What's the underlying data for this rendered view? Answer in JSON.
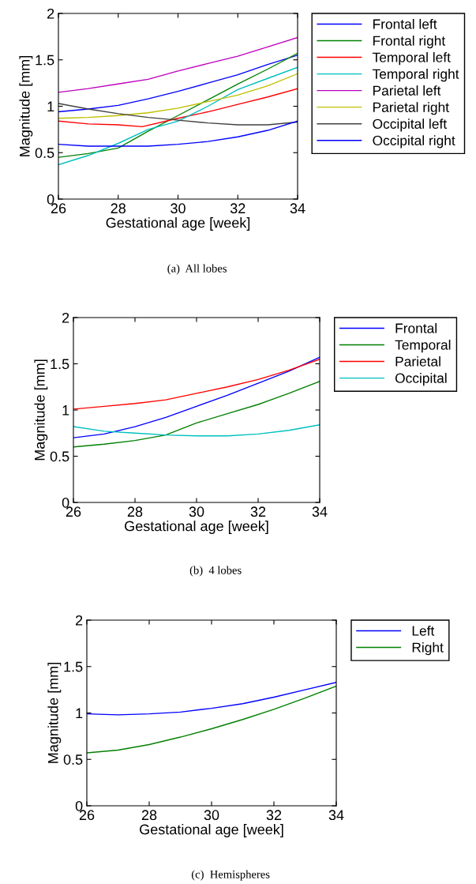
{
  "chart_data": [
    {
      "type": "line",
      "xlabel": "Gestational age [week]",
      "ylabel": "Magnitude [mm]",
      "annotations": [
        "(a)  All lobes"
      ],
      "x": [
        26,
        27,
        28,
        29,
        30,
        31,
        32,
        33,
        34
      ],
      "xlim": [
        26,
        34
      ],
      "xticks": [
        26,
        28,
        30,
        32,
        34
      ],
      "ylim": [
        0,
        2
      ],
      "yticks": [
        0,
        0.5,
        1,
        1.5,
        2
      ],
      "grid": false,
      "legend": "right",
      "series": [
        {
          "name": "Frontal left",
          "color": "#0000ff",
          "values": [
            0.94,
            0.97,
            1.01,
            1.08,
            1.16,
            1.25,
            1.34,
            1.45,
            1.55
          ]
        },
        {
          "name": "Frontal right",
          "color": "#008000",
          "values": [
            0.45,
            0.49,
            0.55,
            0.73,
            0.9,
            1.07,
            1.24,
            1.4,
            1.57
          ]
        },
        {
          "name": "Temporal left",
          "color": "#ff0000",
          "x": [
            26,
            27,
            28,
            28.8,
            30,
            31,
            32,
            33,
            34
          ],
          "values": [
            0.84,
            0.81,
            0.8,
            0.78,
            0.87,
            0.94,
            1.02,
            1.1,
            1.19
          ]
        },
        {
          "name": "Temporal right",
          "color": "#00bfbf",
          "values": [
            0.37,
            0.47,
            0.6,
            0.75,
            0.84,
            1.0,
            1.18,
            1.3,
            1.42
          ]
        },
        {
          "name": "Parietal left",
          "color": "#bf00bf",
          "values": [
            1.15,
            1.19,
            1.24,
            1.29,
            1.38,
            1.46,
            1.54,
            1.64,
            1.74
          ]
        },
        {
          "name": "Parietal right",
          "color": "#bfbf00",
          "values": [
            0.87,
            0.88,
            0.9,
            0.93,
            0.98,
            1.05,
            1.12,
            1.22,
            1.35
          ]
        },
        {
          "name": "Occipital left",
          "color": "#404040",
          "values": [
            1.03,
            0.97,
            0.92,
            0.88,
            0.85,
            0.82,
            0.8,
            0.8,
            0.83
          ]
        },
        {
          "name": "Occipital right",
          "color": "#0000ff",
          "values": [
            0.59,
            0.57,
            0.57,
            0.57,
            0.59,
            0.62,
            0.67,
            0.74,
            0.84
          ]
        }
      ]
    },
    {
      "type": "line",
      "xlabel": "Gestational age [week]",
      "ylabel": "Magnitude [mm]",
      "annotations": [
        "(b)  4 lobes"
      ],
      "x": [
        26,
        27,
        28,
        29,
        30,
        31,
        32,
        33,
        34
      ],
      "xlim": [
        26,
        34
      ],
      "xticks": [
        26,
        28,
        30,
        32,
        34
      ],
      "ylim": [
        0,
        2
      ],
      "yticks": [
        0,
        0.5,
        1,
        1.5,
        2
      ],
      "grid": false,
      "legend": "right",
      "series": [
        {
          "name": "Frontal",
          "color": "#0000ff",
          "values": [
            0.7,
            0.74,
            0.82,
            0.92,
            1.04,
            1.16,
            1.29,
            1.42,
            1.57
          ]
        },
        {
          "name": "Temporal",
          "color": "#008000",
          "values": [
            0.6,
            0.63,
            0.67,
            0.73,
            0.86,
            0.96,
            1.06,
            1.18,
            1.31
          ]
        },
        {
          "name": "Parietal",
          "color": "#ff0000",
          "values": [
            1.01,
            1.04,
            1.07,
            1.11,
            1.18,
            1.25,
            1.33,
            1.43,
            1.55
          ]
        },
        {
          "name": "Occipital",
          "color": "#00bfbf",
          "values": [
            0.82,
            0.77,
            0.75,
            0.73,
            0.72,
            0.72,
            0.74,
            0.78,
            0.84
          ]
        }
      ]
    },
    {
      "type": "line",
      "xlabel": "Gestational age [week]",
      "ylabel": "Magnitude [mm]",
      "annotations": [
        "(c)  Hemispheres"
      ],
      "x": [
        26,
        27,
        28,
        29,
        30,
        31,
        32,
        33,
        34
      ],
      "xlim": [
        26,
        34
      ],
      "xticks": [
        26,
        28,
        30,
        32,
        34
      ],
      "ylim": [
        0,
        2
      ],
      "yticks": [
        0,
        0.5,
        1,
        1.5,
        2
      ],
      "grid": false,
      "legend": "right",
      "series": [
        {
          "name": "Left",
          "color": "#0000ff",
          "values": [
            0.99,
            0.98,
            0.99,
            1.01,
            1.05,
            1.1,
            1.17,
            1.25,
            1.33
          ]
        },
        {
          "name": "Right",
          "color": "#008000",
          "values": [
            0.57,
            0.6,
            0.66,
            0.74,
            0.83,
            0.93,
            1.04,
            1.16,
            1.29
          ]
        }
      ]
    }
  ]
}
